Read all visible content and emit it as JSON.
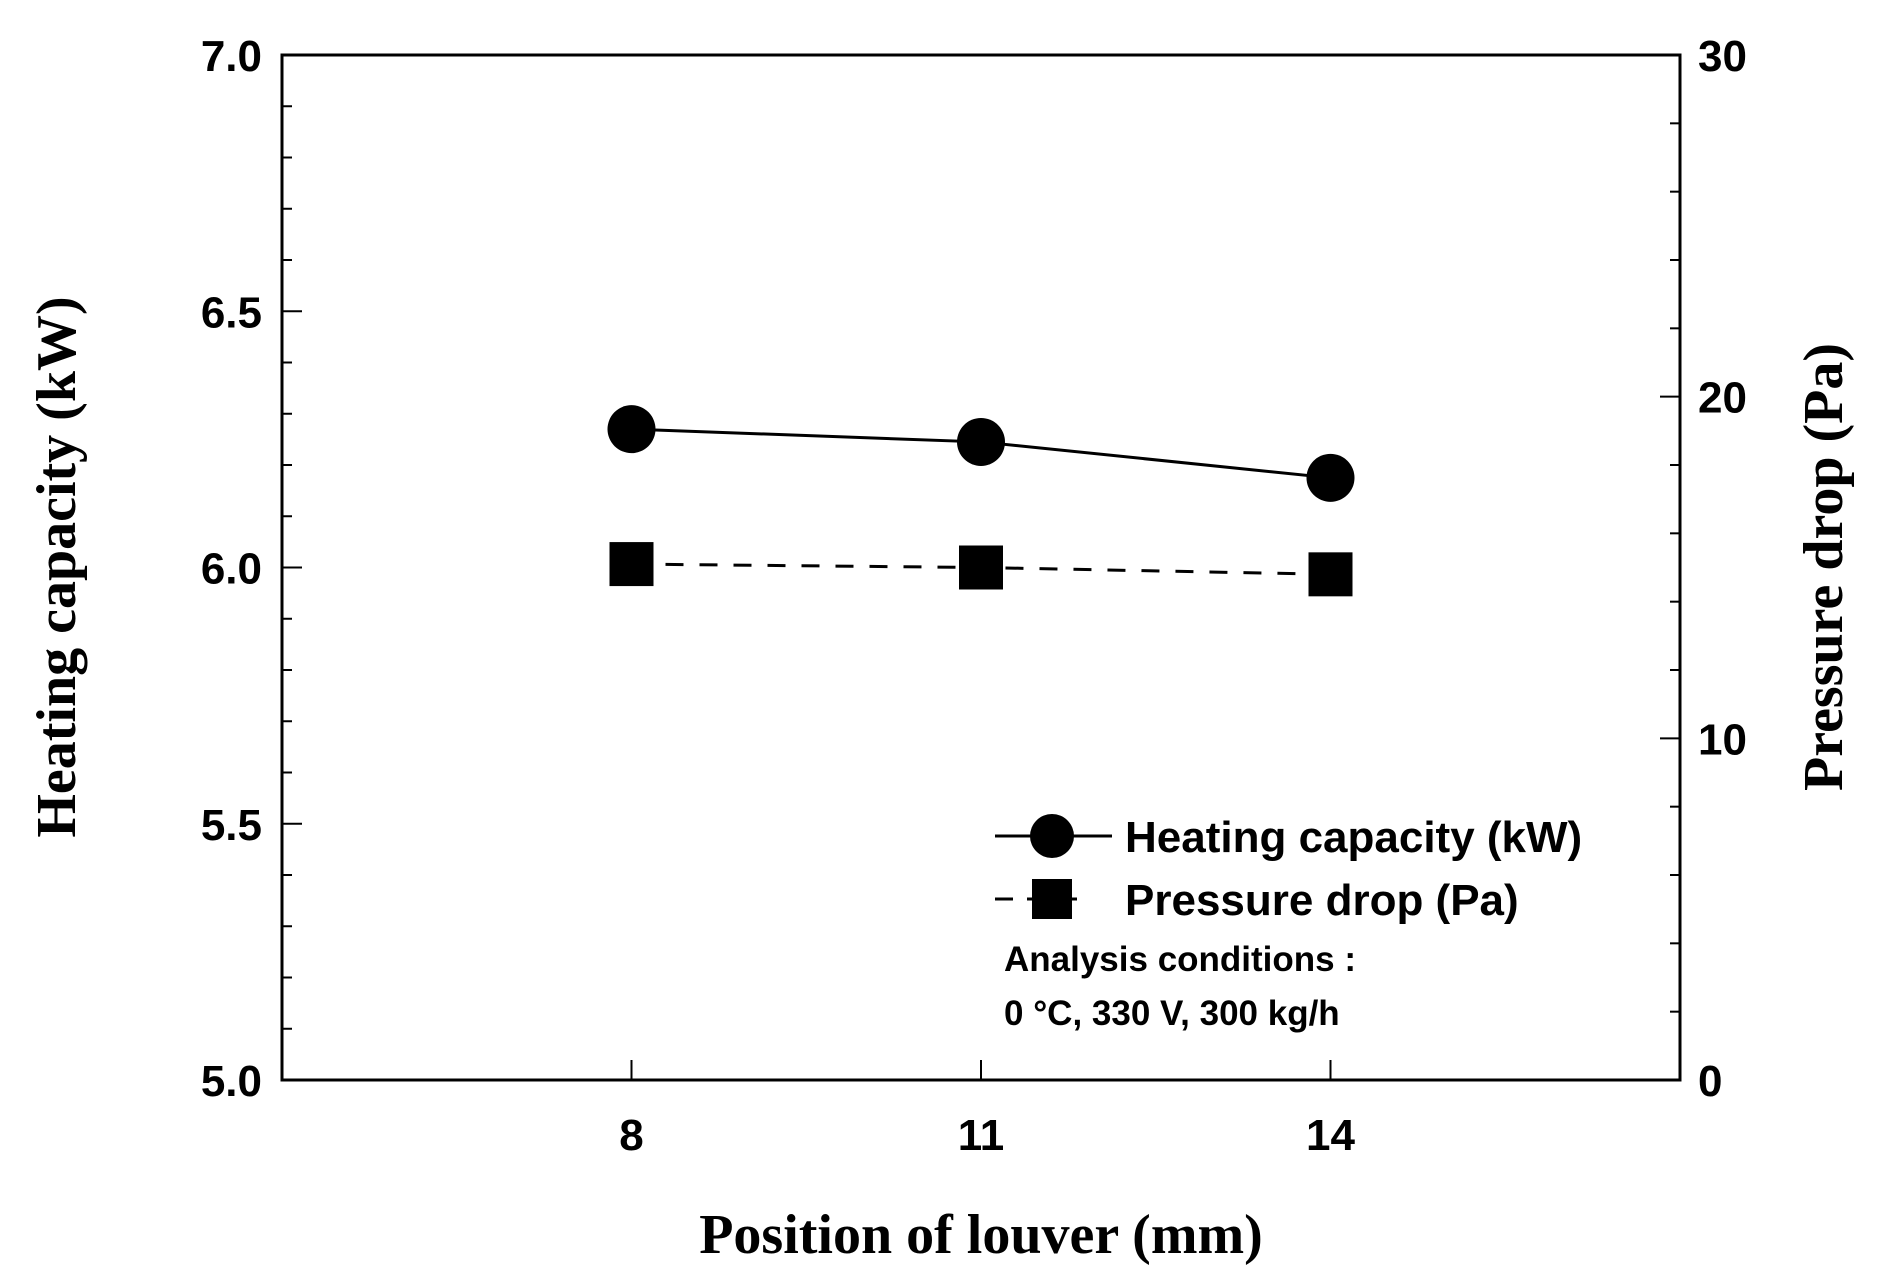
{
  "chart_data": {
    "type": "line",
    "x": [
      8,
      11,
      14
    ],
    "xlim": [
      5,
      17
    ],
    "xticks": [
      "8",
      "11",
      "14"
    ],
    "xlabel": "Position of louver (mm)",
    "ylabel": "Heating capacity (kW)",
    "ylim": [
      5.0,
      7.0
    ],
    "yticks": [
      "5.0",
      "5.5",
      "6.0",
      "6.5",
      "7.0"
    ],
    "y2label": "Pressure drop (Pa)",
    "y2lim": [
      0,
      30
    ],
    "y2ticks": [
      "0",
      "10",
      "20",
      "30"
    ],
    "series": [
      {
        "name": "Heating capacity (kW)",
        "axis": "left",
        "marker": "circle",
        "line": "solid",
        "values": [
          6.27,
          6.245,
          6.175
        ]
      },
      {
        "name": "Pressure drop (Pa)",
        "axis": "right",
        "marker": "square",
        "line": "dashed",
        "values": [
          15.1,
          15.0,
          14.8
        ]
      }
    ],
    "legend": {
      "position": "bottom-right",
      "entries": [
        "Heating capacity (kW)",
        "Pressure drop (Pa)"
      ]
    },
    "annotation": {
      "line1": "Analysis conditions :",
      "line2": "0 °C, 330 V, 300 kg/h"
    },
    "grid": false
  }
}
